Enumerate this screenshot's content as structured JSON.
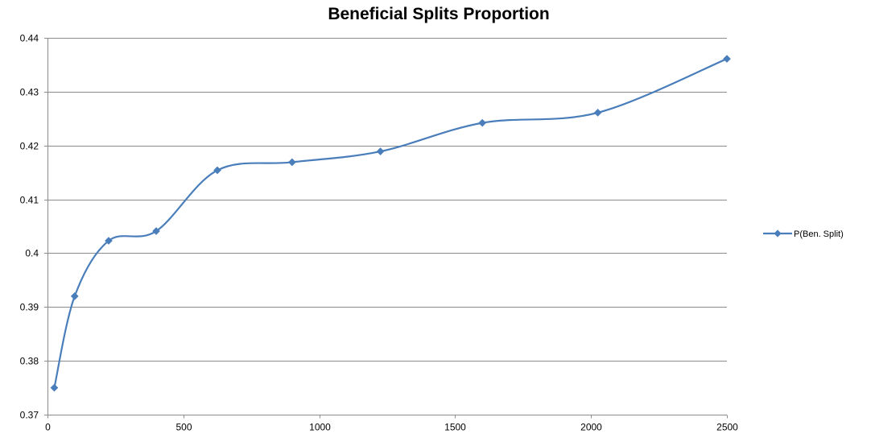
{
  "chart_data": {
    "type": "line",
    "title": "Beneficial Splits Proportion",
    "xlabel": "",
    "ylabel": "",
    "xlim": [
      0,
      2500
    ],
    "ylim": [
      0.37,
      0.44
    ],
    "x_ticks": [
      0,
      500,
      1000,
      1500,
      2000,
      2500
    ],
    "x_tick_labels": [
      "0",
      "500",
      "1000",
      "1500",
      "2000",
      "2500"
    ],
    "y_ticks": [
      0.37,
      0.38,
      0.39,
      0.4,
      0.41,
      0.42,
      0.43,
      0.44
    ],
    "y_tick_labels": [
      "0.37",
      "0.38",
      "0.39",
      "0.4",
      "0.41",
      "0.42",
      "0.43",
      "0.44"
    ],
    "grid": "horizontal",
    "legend_position": "right",
    "smooth": true,
    "series": [
      {
        "name": "P(Ben. Split)",
        "color": "#4a7ebb",
        "marker": "diamond",
        "x": [
          25,
          100,
          225,
          400,
          625,
          900,
          1225,
          1600,
          2025,
          2500
        ],
        "y": [
          0.375,
          0.392,
          0.4023,
          0.4041,
          0.4154,
          0.4169,
          0.4189,
          0.4242,
          0.4261,
          0.4361
        ]
      }
    ]
  }
}
